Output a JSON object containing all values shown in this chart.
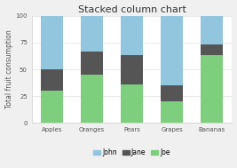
{
  "title": "Stacked column chart",
  "categories": [
    "Apples",
    "Oranges",
    "Pears",
    "Grapes",
    "Bananas"
  ],
  "series": {
    "Joe": [
      30,
      45,
      36,
      20,
      63
    ],
    "Jane": [
      20,
      22,
      27,
      15,
      10
    ],
    "John": [
      50,
      33,
      37,
      65,
      27
    ]
  },
  "colors": {
    "John": "#92c5de",
    "Jane": "#555555",
    "Joe": "#7dce7d"
  },
  "ylabel": "Total fruit consumption",
  "ylim": [
    0,
    100
  ],
  "yticks": [
    0,
    25,
    50,
    75,
    100
  ],
  "stack_order": [
    "Joe",
    "Jane",
    "John"
  ],
  "legend_order": [
    "John",
    "Jane",
    "Joe"
  ],
  "bg_color": "#f0f0f0",
  "plot_bg": "#ffffff",
  "title_fontsize": 8,
  "axis_fontsize": 5.5,
  "tick_fontsize": 5,
  "legend_fontsize": 5.5
}
